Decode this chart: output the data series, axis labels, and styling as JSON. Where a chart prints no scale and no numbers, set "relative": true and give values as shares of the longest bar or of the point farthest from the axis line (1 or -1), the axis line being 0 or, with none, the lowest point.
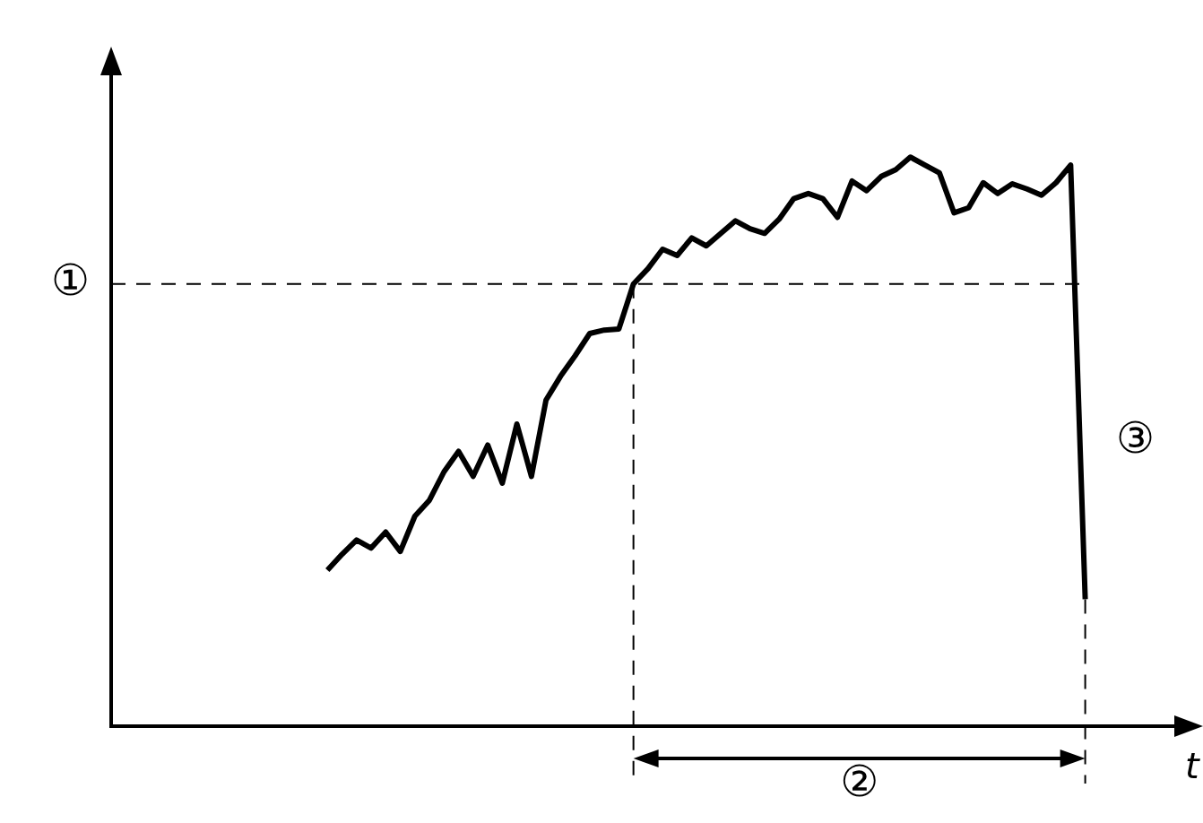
{
  "chart_data": {
    "type": "line",
    "relative": true,
    "xlabel": "t",
    "legend": false,
    "grid": false,
    "marker": "none",
    "line_style": "solid",
    "categories": [
      null,
      null,
      null,
      null,
      null,
      null,
      null,
      null,
      null,
      null,
      null,
      null,
      null,
      null,
      null,
      null,
      null,
      null,
      null,
      null,
      null,
      null,
      null,
      null,
      null,
      null,
      null,
      null,
      null,
      null,
      null,
      null,
      null,
      null,
      null,
      null,
      null,
      null,
      null,
      null,
      null,
      null,
      null,
      null,
      null,
      null,
      null,
      null,
      null,
      null,
      null,
      null,
      null
    ],
    "series": [
      {
        "color": "#000000",
        "values": [
          0.274,
          0.302,
          0.327,
          0.313,
          0.341,
          0.307,
          0.369,
          0.397,
          0.447,
          0.483,
          0.439,
          0.494,
          0.427,
          0.531,
          0.439,
          0.573,
          0.615,
          0.651,
          0.69,
          0.696,
          0.698,
          0.777,
          0.804,
          0.838,
          0.827,
          0.858,
          0.844,
          0.866,
          0.888,
          0.874,
          0.866,
          0.891,
          0.927,
          0.936,
          0.927,
          0.894,
          0.958,
          0.941,
          0.966,
          0.978,
          1,
          0.986,
          0.972,
          0.902,
          0.911,
          0.955,
          0.936,
          0.953,
          0.944,
          0.933,
          0.955,
          0.986,
          0.223
        ]
      }
    ],
    "ref_lines": [
      {
        "axis": "y",
        "value": 0.777,
        "label": "①",
        "color": "#000000",
        "line_style": "dashed"
      }
    ],
    "annotations": [
      "②",
      "③"
    ]
  }
}
